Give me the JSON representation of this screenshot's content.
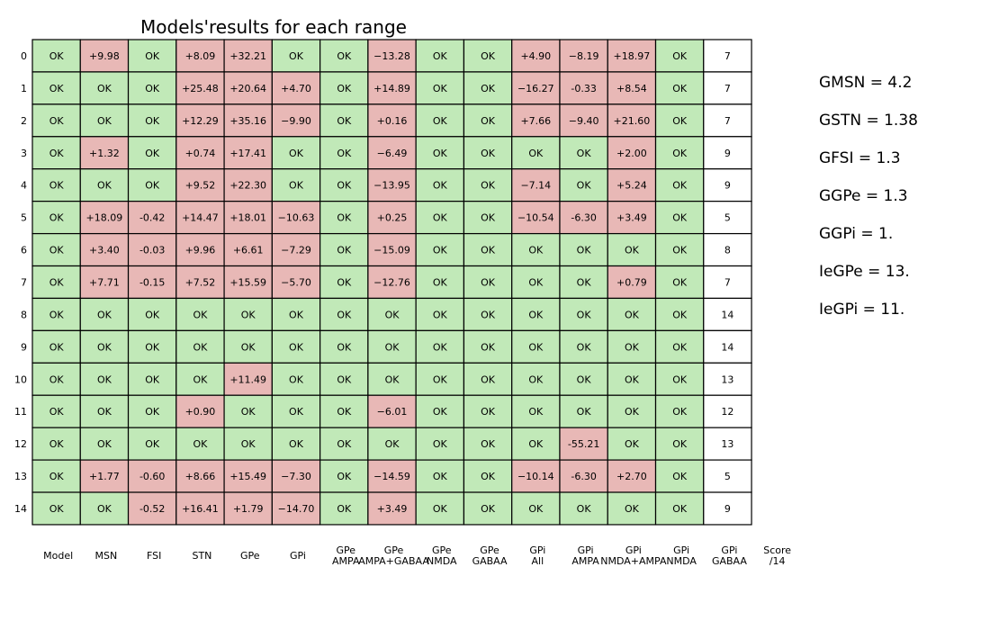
{
  "chart_data": {
    "type": "table",
    "title": "Models'results for each range",
    "row_labels": [
      "0",
      "1",
      "2",
      "3",
      "4",
      "5",
      "6",
      "7",
      "8",
      "9",
      "10",
      "11",
      "12",
      "13",
      "14"
    ],
    "columns": [
      [
        "Model"
      ],
      [
        "MSN"
      ],
      [
        "FSI"
      ],
      [
        "STN"
      ],
      [
        "GPe"
      ],
      [
        "GPi"
      ],
      [
        "GPe",
        "AMPA"
      ],
      [
        "GPe",
        "AMPA+GABAA"
      ],
      [
        "GPe",
        "NMDA"
      ],
      [
        "GPe",
        "GABAA"
      ],
      [
        "GPi",
        "All"
      ],
      [
        "GPi",
        "AMPA"
      ],
      [
        "GPi",
        "NMDA+AMPA"
      ],
      [
        "GPi",
        "NMDA"
      ],
      [
        "GPi",
        "GABAA"
      ],
      [
        "Score",
        "/14"
      ]
    ],
    "cells": [
      [
        "OK",
        "+9.98",
        "OK",
        "+8.09",
        "+32.21",
        "OK",
        "OK",
        "−13.28",
        "OK",
        "OK",
        "+4.90",
        "−8.19",
        "+18.97",
        "OK",
        "7"
      ],
      [
        "OK",
        "OK",
        "OK",
        "+25.48",
        "+20.64",
        "+4.70",
        "OK",
        "+14.89",
        "OK",
        "OK",
        "−16.27",
        "-0.33",
        "+8.54",
        "OK",
        "7"
      ],
      [
        "OK",
        "OK",
        "OK",
        "+12.29",
        "+35.16",
        "−9.90",
        "OK",
        "+0.16",
        "OK",
        "OK",
        "+7.66",
        "−9.40",
        "+21.60",
        "OK",
        "7"
      ],
      [
        "OK",
        "+1.32",
        "OK",
        "+0.74",
        "+17.41",
        "OK",
        "OK",
        "−6.49",
        "OK",
        "OK",
        "OK",
        "OK",
        "+2.00",
        "OK",
        "9"
      ],
      [
        "OK",
        "OK",
        "OK",
        "+9.52",
        "+22.30",
        "OK",
        "OK",
        "−13.95",
        "OK",
        "OK",
        "−7.14",
        "OK",
        "+5.24",
        "OK",
        "9"
      ],
      [
        "OK",
        "+18.09",
        "-0.42",
        "+14.47",
        "+18.01",
        "−10.63",
        "OK",
        "+0.25",
        "OK",
        "OK",
        "−10.54",
        "-6.30",
        "+3.49",
        "OK",
        "5"
      ],
      [
        "OK",
        "+3.40",
        "-0.03",
        "+9.96",
        "+6.61",
        "−7.29",
        "OK",
        "−15.09",
        "OK",
        "OK",
        "OK",
        "OK",
        "OK",
        "OK",
        "8"
      ],
      [
        "OK",
        "+7.71",
        "-0.15",
        "+7.52",
        "+15.59",
        "−5.70",
        "OK",
        "−12.76",
        "OK",
        "OK",
        "OK",
        "OK",
        "+0.79",
        "OK",
        "7"
      ],
      [
        "OK",
        "OK",
        "OK",
        "OK",
        "OK",
        "OK",
        "OK",
        "OK",
        "OK",
        "OK",
        "OK",
        "OK",
        "OK",
        "OK",
        "14"
      ],
      [
        "OK",
        "OK",
        "OK",
        "OK",
        "OK",
        "OK",
        "OK",
        "OK",
        "OK",
        "OK",
        "OK",
        "OK",
        "OK",
        "OK",
        "14"
      ],
      [
        "OK",
        "OK",
        "OK",
        "OK",
        "+11.49",
        "OK",
        "OK",
        "OK",
        "OK",
        "OK",
        "OK",
        "OK",
        "OK",
        "OK",
        "13"
      ],
      [
        "OK",
        "OK",
        "OK",
        "+0.90",
        "OK",
        "OK",
        "OK",
        "−6.01",
        "OK",
        "OK",
        "OK",
        "OK",
        "OK",
        "OK",
        "12"
      ],
      [
        "OK",
        "OK",
        "OK",
        "OK",
        "OK",
        "OK",
        "OK",
        "OK",
        "OK",
        "OK",
        "OK",
        "-55.21",
        "OK",
        "OK",
        "13"
      ],
      [
        "OK",
        "+1.77",
        "-0.60",
        "+8.66",
        "+15.49",
        "−7.30",
        "OK",
        "−14.59",
        "OK",
        "OK",
        "−10.14",
        "-6.30",
        "+2.70",
        "OK",
        "5"
      ],
      [
        "OK",
        "OK",
        "-0.52",
        "+16.41",
        "+1.79",
        "−14.70",
        "OK",
        "+3.49",
        "OK",
        "OK",
        "OK",
        "OK",
        "OK",
        "OK",
        "9"
      ]
    ],
    "colors": {
      "ok": "#c1e9b8",
      "fail": "#e8b8b6",
      "score": "#ffffff",
      "border": "#000000"
    }
  },
  "side_notes": [
    "GMSN = 4.2",
    "GSTN = 1.38",
    "GFSI = 1.3",
    "GGPe = 1.3",
    "GGPi = 1.",
    "IeGPe = 13.",
    "IeGPi = 11."
  ]
}
